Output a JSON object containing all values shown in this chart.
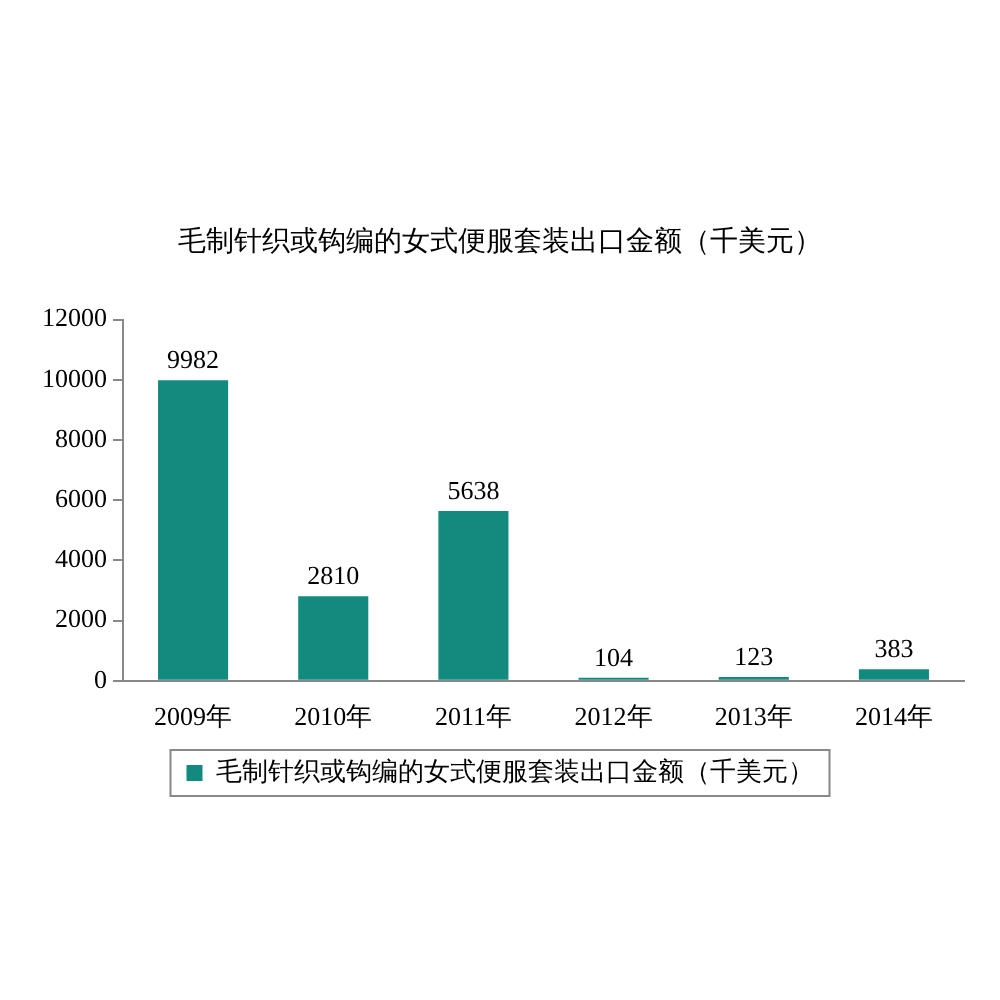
{
  "chart_data": {
    "type": "bar",
    "title": "毛制针织或钩编的女式便服套装出口金额（千美元）",
    "categories": [
      "2009年",
      "2010年",
      "2011年",
      "2012年",
      "2013年",
      "2014年"
    ],
    "series": [
      {
        "name": "毛制针织或钩编的女式便服套装出口金额（千美元）",
        "color": "#138a7e",
        "values": [
          9982,
          2810,
          5638,
          104,
          123,
          383
        ]
      }
    ],
    "ylim": [
      0,
      12000
    ],
    "yticks": [
      0,
      2000,
      4000,
      6000,
      8000,
      10000,
      12000
    ],
    "grid": false,
    "legend": "bottom",
    "data_labels": true
  }
}
